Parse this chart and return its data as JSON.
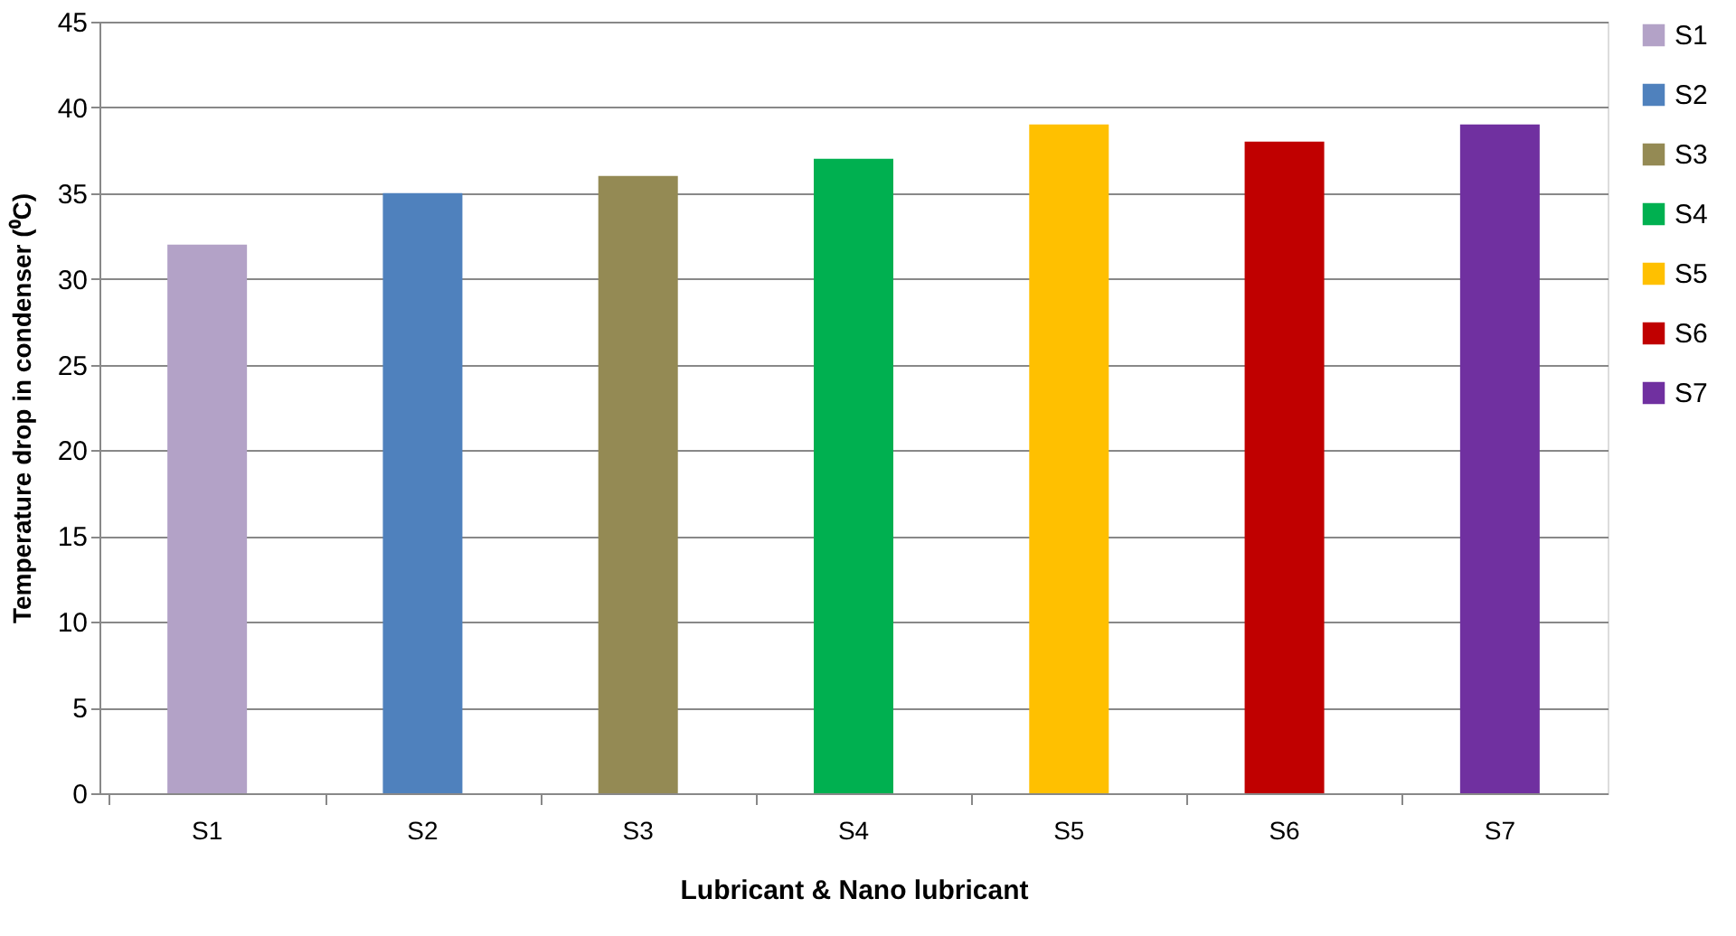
{
  "chart_data": {
    "type": "bar",
    "xlabel": "Lubricant & Nano lubricant",
    "ylabel": "Temperature drop in condenser (⁰C)",
    "categories": [
      "S1",
      "S2",
      "S3",
      "S4",
      "S5",
      "S6",
      "S7"
    ],
    "series": [
      {
        "name": "S1",
        "color": "#b3a2c7",
        "values": [
          32,
          null,
          null,
          null,
          null,
          null,
          null
        ]
      },
      {
        "name": "S2",
        "color": "#4f81bd",
        "values": [
          null,
          35,
          null,
          null,
          null,
          null,
          null
        ]
      },
      {
        "name": "S3",
        "color": "#948a54",
        "values": [
          null,
          null,
          36,
          null,
          null,
          null,
          null
        ]
      },
      {
        "name": "S4",
        "color": "#00b050",
        "values": [
          null,
          null,
          null,
          37,
          null,
          null,
          null
        ]
      },
      {
        "name": "S5",
        "color": "#ffc000",
        "values": [
          null,
          null,
          null,
          null,
          39,
          null,
          null
        ]
      },
      {
        "name": "S6",
        "color": "#c00000",
        "values": [
          null,
          null,
          null,
          null,
          null,
          38,
          null
        ]
      },
      {
        "name": "S7",
        "color": "#7030a0",
        "values": [
          null,
          null,
          null,
          null,
          null,
          null,
          39
        ]
      }
    ],
    "ylim": [
      0,
      45
    ],
    "yticks": [
      0,
      5,
      10,
      15,
      20,
      25,
      30,
      35,
      40,
      45
    ],
    "grid": "y",
    "legend": "right"
  }
}
